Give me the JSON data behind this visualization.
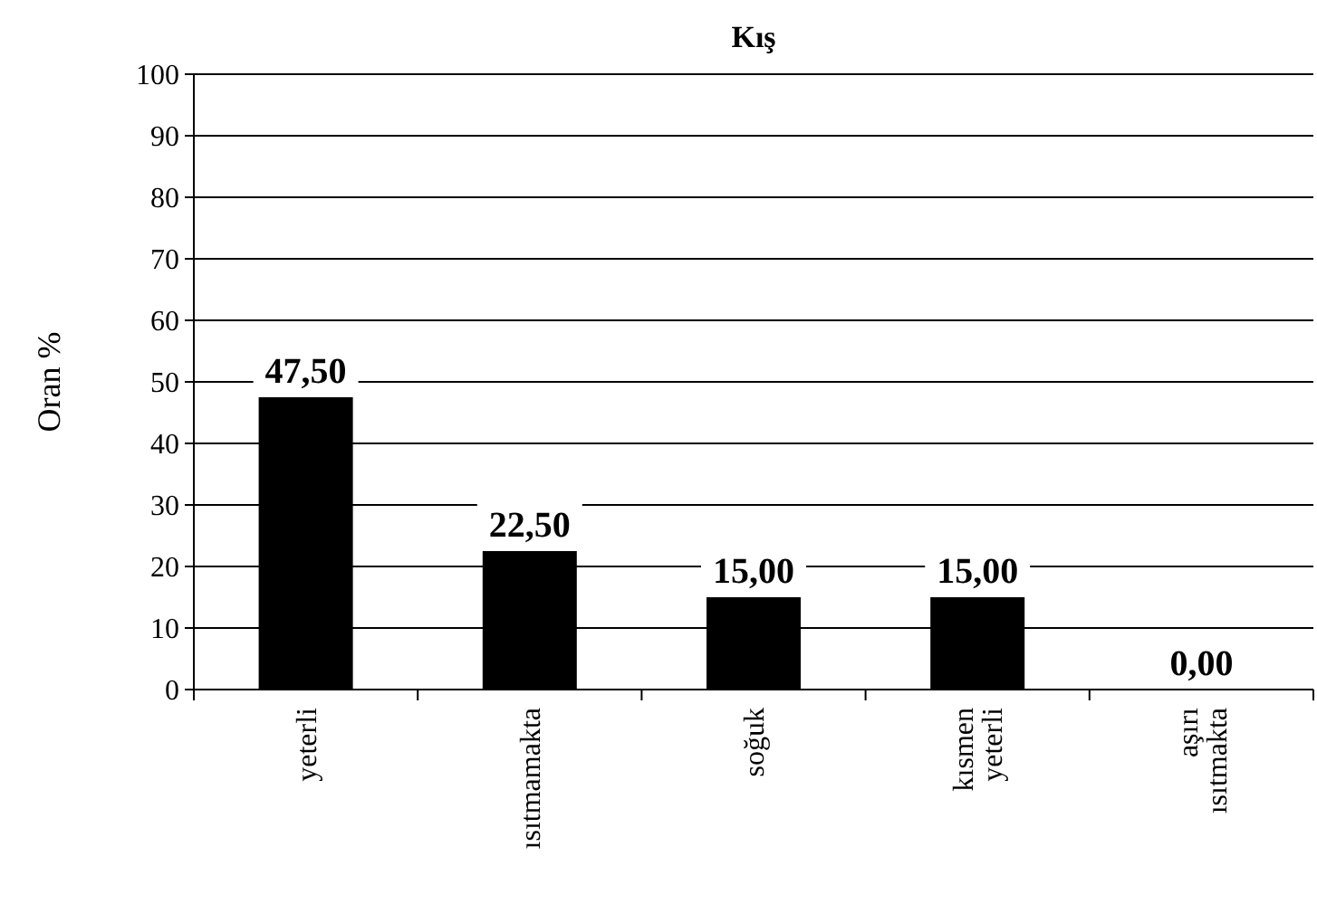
{
  "chart_data": {
    "type": "bar",
    "title": "Kış",
    "ylabel": "Oran %",
    "categories": [
      "yeterli",
      "ısıtmamakta",
      "soğuk",
      "kısmen yeterli",
      "aşırı ısıtmakta"
    ],
    "values": [
      47.5,
      22.5,
      15,
      15,
      0
    ],
    "value_labels": [
      "47,50",
      "22,50",
      "15,00",
      "15,00",
      "0,00"
    ],
    "color": "#000000",
    "ylim": [
      0,
      100
    ],
    "yticks": [
      0,
      10,
      20,
      30,
      40,
      50,
      60,
      70,
      80,
      90,
      100
    ],
    "grid": "y"
  }
}
